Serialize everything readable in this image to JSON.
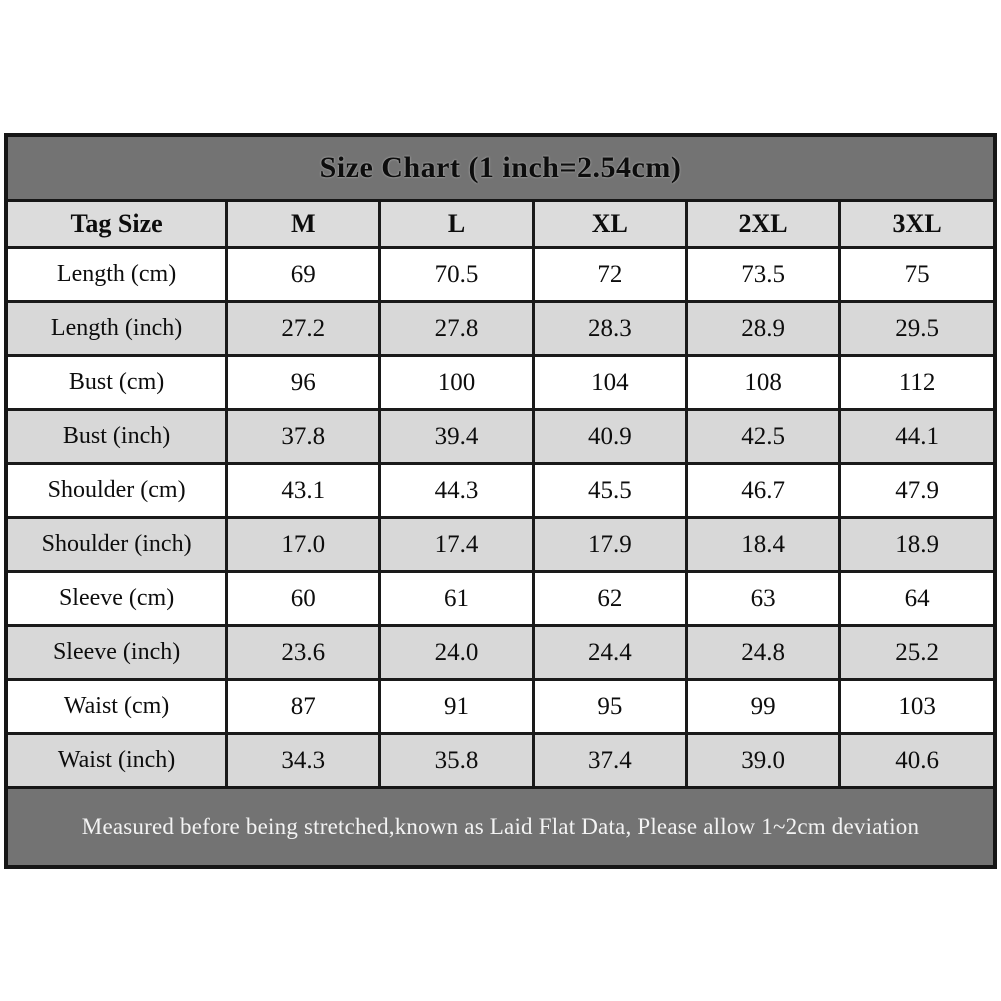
{
  "chart_data": {
    "type": "table",
    "title": "Size Chart (1 inch=2.54cm)",
    "columns": [
      "Tag Size",
      "M",
      "L",
      "XL",
      "2XL",
      "3XL"
    ],
    "rows": [
      {
        "label": "Length (cm)",
        "values": [
          "69",
          "70.5",
          "72",
          "73.5",
          "75"
        ]
      },
      {
        "label": "Length (inch)",
        "values": [
          "27.2",
          "27.8",
          "28.3",
          "28.9",
          "29.5"
        ]
      },
      {
        "label": "Bust (cm)",
        "values": [
          "96",
          "100",
          "104",
          "108",
          "112"
        ]
      },
      {
        "label": "Bust (inch)",
        "values": [
          "37.8",
          "39.4",
          "40.9",
          "42.5",
          "44.1"
        ]
      },
      {
        "label": "Shoulder (cm)",
        "values": [
          "43.1",
          "44.3",
          "45.5",
          "46.7",
          "47.9"
        ]
      },
      {
        "label": "Shoulder (inch)",
        "values": [
          "17.0",
          "17.4",
          "17.9",
          "18.4",
          "18.9"
        ]
      },
      {
        "label": "Sleeve (cm)",
        "values": [
          "60",
          "61",
          "62",
          "63",
          "64"
        ]
      },
      {
        "label": "Sleeve (inch)",
        "values": [
          "23.6",
          "24.0",
          "24.4",
          "24.8",
          "25.2"
        ]
      },
      {
        "label": "Waist (cm)",
        "values": [
          "87",
          "91",
          "95",
          "99",
          "103"
        ]
      },
      {
        "label": "Waist (inch)",
        "values": [
          "34.3",
          "35.8",
          "37.4",
          "39.0",
          "40.6"
        ]
      }
    ],
    "footer_note": "Measured before being stretched,known as Laid Flat Data, Please allow 1~2cm deviation",
    "layout": {
      "zebra_striping": true,
      "first_data_row_background": "white"
    },
    "colors": {
      "band_background": "#737373",
      "header_row_background": "#dcdcdc",
      "alt_row_background": "#d8d8d8",
      "grid_border": "#1a1a1a",
      "title_text": "#0d0d0d",
      "footer_text": "#f3f3f3"
    }
  }
}
